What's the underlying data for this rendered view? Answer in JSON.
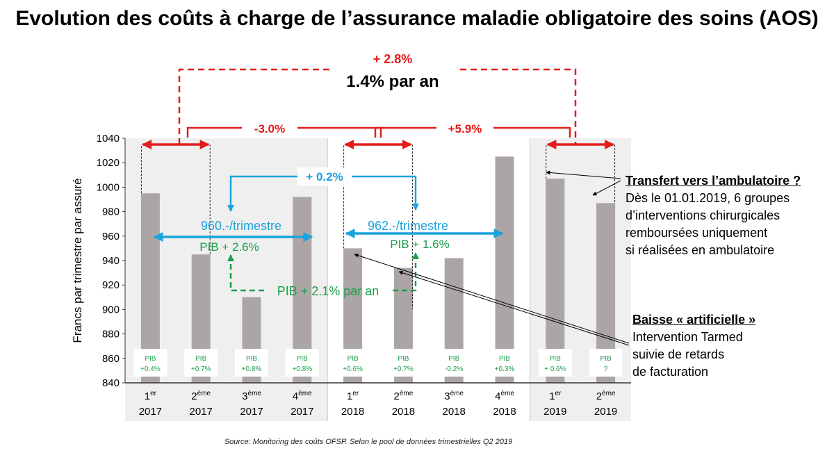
{
  "title": "Evolution des coûts à charge de l’assurance maladie obligatoire des soins (AOS)",
  "colors": {
    "bar": "#aba6a5",
    "red": "#e41b1b",
    "blue": "#1aa3dc",
    "green": "#1a9e4a",
    "shade": "#efefef"
  },
  "chart_data": {
    "type": "bar",
    "ylabel": "Francs par trimestre par assuré",
    "ylim": [
      840,
      1040
    ],
    "yticks": [
      "840",
      "860",
      "880",
      "900",
      "920",
      "940",
      "960",
      "980",
      "1000",
      "1020",
      "1040"
    ],
    "categories": [
      {
        "q": "1",
        "sup": "er",
        "year": "2017"
      },
      {
        "q": "2",
        "sup": "ème",
        "year": "2017"
      },
      {
        "q": "3",
        "sup": "ème",
        "year": "2017"
      },
      {
        "q": "4",
        "sup": "ème",
        "year": "2017"
      },
      {
        "q": "1",
        "sup": "er",
        "year": "2018"
      },
      {
        "q": "2",
        "sup": "ème",
        "year": "2018"
      },
      {
        "q": "3",
        "sup": "ème",
        "year": "2018"
      },
      {
        "q": "4",
        "sup": "ème",
        "year": "2018"
      },
      {
        "q": "1",
        "sup": "er",
        "year": "2019"
      },
      {
        "q": "2",
        "sup": "ème",
        "year": "2019"
      }
    ],
    "values": [
      995,
      945,
      910,
      992,
      950,
      934,
      942,
      1025,
      1007,
      987
    ],
    "pib_boxes": [
      [
        "PIB",
        "+0.4%"
      ],
      [
        "PIB",
        "+0.7%"
      ],
      [
        "PIB",
        "+0.8%"
      ],
      [
        "PIB",
        "+0.8%"
      ],
      [
        "PIB",
        "+0.6%"
      ],
      [
        "PIB",
        "+0.7%"
      ],
      [
        "PIB",
        "-0.2%"
      ],
      [
        "PIB",
        "+0.3%"
      ],
      [
        "PIB",
        "+ 0.6%"
      ],
      [
        "PIB",
        "?"
      ]
    ],
    "annotations": {
      "total_change": "+ 2.8%",
      "total_per_year": "1.4% par an",
      "change_2017": "-3.0%",
      "change_2018": "+5.9%",
      "avg_change": "+ 0.2%",
      "avg_2017": "960.-/trimestre",
      "avg_2018": "962.-/trimestre",
      "pib_2017": "PIB + 2.6%",
      "pib_2018": "PIB + 1.6%",
      "pib_per_year": "PIB + 2.1% par an"
    }
  },
  "note_ambulatoire": {
    "heading": "Transfert vers l’ambulatoire ?",
    "lines": [
      "Dès le 01.01.2019, 6 groupes",
      "d’interventions chirurgicales",
      "remboursées uniquement",
      "si réalisées en ambulatoire"
    ]
  },
  "note_baisse": {
    "heading": "Baisse « artificielle »",
    "lines": [
      "Intervention Tarmed",
      "suivie de retards",
      "de facturation"
    ]
  },
  "source": "Source: Monitoring des coûts OFSP. Selon le pool de données trimestrielles Q2 2019"
}
